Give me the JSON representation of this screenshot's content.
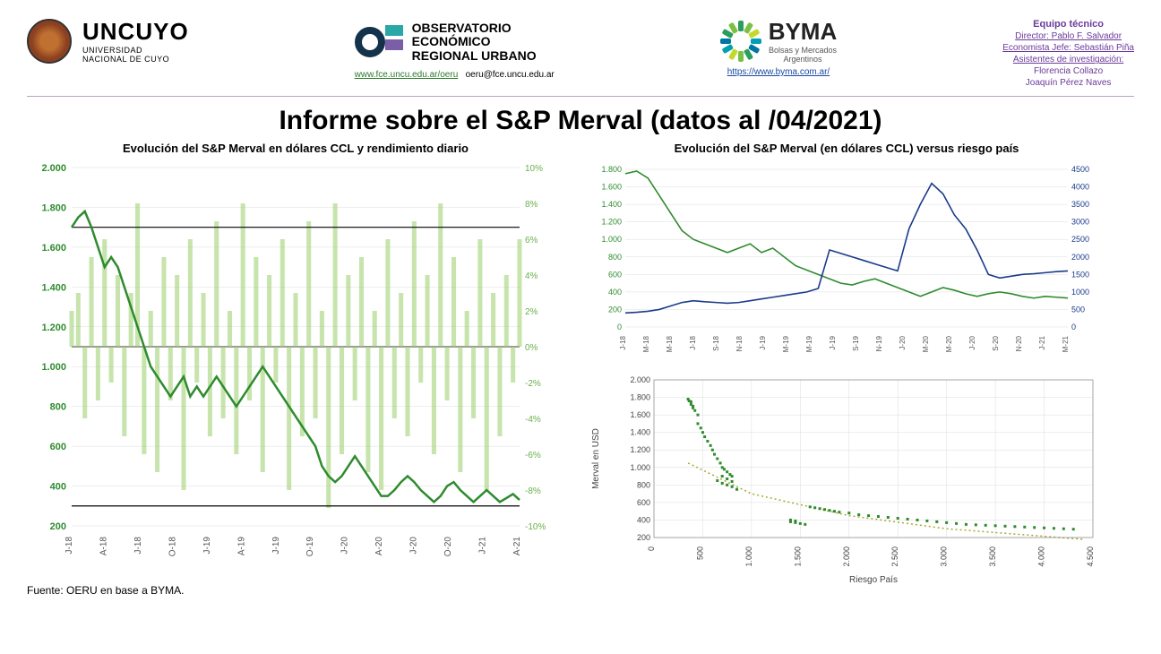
{
  "header": {
    "uncuyo": {
      "name": "UNCUYO",
      "sub1": "UNIVERSIDAD",
      "sub2": "NACIONAL DE CUYO"
    },
    "oeru": {
      "line1": "OBSERVATORIO",
      "line2": "ECONÓMICO",
      "line3": "REGIONAL URBANO",
      "url": "www.fce.uncu.edu.ar/oeru",
      "email": "oeru@fce.uncu.edu.ar"
    },
    "byma": {
      "name": "BYMA",
      "sub1": "Bolsas y Mercados",
      "sub2": "Argentinos",
      "url": "https://www.byma.com.ar/"
    },
    "team": {
      "title": "Equipo técnico",
      "lines": [
        "Director: Pablo F. Salvador",
        "Economista Jefe: Sebastián Piña",
        "Asistentes de investigación:",
        "Florencia Collazo",
        "Joaquín Pérez Naves"
      ]
    }
  },
  "main_title": "Informe sobre el S&P Merval (datos al /04/2021)",
  "source": "Fuente: OERU en base a BYMA.",
  "chart1": {
    "title": "Evolución del S&P Merval en dólares CCL y rendimiento diario",
    "type": "line+bars_dual_axis",
    "x_labels": [
      "J-18",
      "A-18",
      "J-18",
      "O-18",
      "J-19",
      "A-19",
      "J-19",
      "O-19",
      "J-20",
      "A-20",
      "J-20",
      "O-20",
      "J-21",
      "A-21"
    ],
    "y1_ticks": [
      200,
      400,
      600,
      800,
      1000,
      1200,
      1400,
      1600,
      1800,
      2000
    ],
    "y1_lim": [
      200,
      2000
    ],
    "y2_ticks": [
      -10,
      -8,
      -6,
      -4,
      -2,
      0,
      2,
      4,
      6,
      8,
      10
    ],
    "y2_lim": [
      -10,
      10
    ],
    "line_color": "#2e8b2e",
    "line_width": 2.5,
    "bar_color": "#9acd6a",
    "bar_opacity": 0.55,
    "ref_line_color": "#000000",
    "ref_lines": [
      300,
      1700
    ],
    "zero_line_color": "#999999",
    "grid_color": "#dcdcdc",
    "line_series": [
      1700,
      1750,
      1780,
      1700,
      1600,
      1500,
      1550,
      1500,
      1400,
      1300,
      1200,
      1100,
      1000,
      950,
      900,
      850,
      900,
      950,
      850,
      900,
      850,
      900,
      950,
      900,
      850,
      800,
      850,
      900,
      950,
      1000,
      950,
      900,
      850,
      800,
      750,
      700,
      650,
      600,
      500,
      450,
      420,
      450,
      500,
      550,
      500,
      450,
      400,
      350,
      350,
      380,
      420,
      450,
      420,
      380,
      350,
      320,
      350,
      400,
      420,
      380,
      350,
      320,
      350,
      380,
      350,
      320,
      340,
      360,
      330
    ],
    "bar_series": [
      2,
      3,
      -4,
      5,
      -3,
      6,
      -2,
      4,
      -5,
      3,
      8,
      -6,
      2,
      -7,
      5,
      -3,
      4,
      -8,
      6,
      -2,
      3,
      -5,
      7,
      -4,
      2,
      -6,
      8,
      -3,
      5,
      -7,
      4,
      -2,
      6,
      -8,
      3,
      -5,
      7,
      -4,
      2,
      -9,
      8,
      -6,
      4,
      -3,
      5,
      -7,
      2,
      -8,
      6,
      -4,
      3,
      -5,
      7,
      -2,
      4,
      -6,
      8,
      -3,
      5,
      -7,
      2,
      -4,
      6,
      -8,
      3,
      -5,
      4,
      -2,
      6
    ],
    "background_color": "#ffffff"
  },
  "chart2": {
    "title": "Evolución del S&P Merval (en dólares CCL) versus riesgo país",
    "type": "dual_line_dual_axis",
    "x_labels": [
      "J-18",
      "M-18",
      "M-18",
      "J-18",
      "S-18",
      "N-18",
      "J-19",
      "M-19",
      "M-19",
      "J-19",
      "S-19",
      "N-19",
      "J-20",
      "M-20",
      "M-20",
      "J-20",
      "S-20",
      "N-20",
      "J-21",
      "M-21"
    ],
    "y1_ticks": [
      0,
      200,
      400,
      600,
      800,
      1000,
      1200,
      1400,
      1600,
      1800
    ],
    "y1_lim": [
      0,
      1800
    ],
    "y2_ticks": [
      0,
      500,
      1000,
      1500,
      2000,
      2500,
      3000,
      3500,
      4000,
      4500
    ],
    "y2_lim": [
      0,
      4500
    ],
    "series1_color": "#2e8b2e",
    "series2_color": "#1a3a8a",
    "line_width": 1.6,
    "grid_color": "#dcdcdc",
    "series1": [
      1750,
      1780,
      1700,
      1500,
      1300,
      1100,
      1000,
      950,
      900,
      850,
      900,
      950,
      850,
      900,
      800,
      700,
      650,
      600,
      550,
      500,
      480,
      520,
      550,
      500,
      450,
      400,
      350,
      400,
      450,
      420,
      380,
      350,
      380,
      400,
      380,
      350,
      330,
      350,
      340,
      330
    ],
    "series2": [
      400,
      420,
      450,
      500,
      600,
      700,
      750,
      720,
      700,
      680,
      700,
      750,
      800,
      850,
      900,
      950,
      1000,
      1100,
      2200,
      2100,
      2000,
      1900,
      1800,
      1700,
      1600,
      2800,
      3500,
      4100,
      3800,
      3200,
      2800,
      2200,
      1500,
      1400,
      1450,
      1500,
      1520,
      1550,
      1580,
      1600
    ],
    "background_color": "#ffffff"
  },
  "chart3": {
    "type": "scatter",
    "x_label": "Riesgo País",
    "y_label": "Merval en USD",
    "x_ticks": [
      0,
      500,
      1000,
      1500,
      2000,
      2500,
      3000,
      3500,
      4000,
      4500
    ],
    "x_lim": [
      0,
      4500
    ],
    "y_ticks": [
      200,
      400,
      600,
      800,
      1000,
      1200,
      1400,
      1600,
      1800,
      2000
    ],
    "y_lim": [
      200,
      2000
    ],
    "marker_color": "#2e8b2e",
    "marker_size": 3,
    "trend_color": "#a8a830",
    "trend_style": "dotted",
    "points": [
      [
        350,
        1780
      ],
      [
        360,
        1760
      ],
      [
        380,
        1720
      ],
      [
        400,
        1700
      ],
      [
        420,
        1650
      ],
      [
        450,
        1600
      ],
      [
        380,
        1750
      ],
      [
        400,
        1680
      ],
      [
        450,
        1500
      ],
      [
        480,
        1450
      ],
      [
        500,
        1400
      ],
      [
        520,
        1350
      ],
      [
        550,
        1300
      ],
      [
        580,
        1250
      ],
      [
        600,
        1200
      ],
      [
        620,
        1150
      ],
      [
        650,
        1100
      ],
      [
        680,
        1050
      ],
      [
        700,
        1000
      ],
      [
        720,
        980
      ],
      [
        750,
        950
      ],
      [
        780,
        920
      ],
      [
        800,
        900
      ],
      [
        650,
        850
      ],
      [
        700,
        820
      ],
      [
        750,
        800
      ],
      [
        800,
        780
      ],
      [
        850,
        750
      ],
      [
        700,
        900
      ],
      [
        750,
        870
      ],
      [
        800,
        840
      ],
      [
        1400,
        380
      ],
      [
        1450,
        370
      ],
      [
        1500,
        360
      ],
      [
        1550,
        350
      ],
      [
        1400,
        400
      ],
      [
        1450,
        390
      ],
      [
        1600,
        550
      ],
      [
        1650,
        540
      ],
      [
        1700,
        530
      ],
      [
        1750,
        520
      ],
      [
        1800,
        510
      ],
      [
        1850,
        500
      ],
      [
        1900,
        490
      ],
      [
        2000,
        480
      ],
      [
        2100,
        460
      ],
      [
        2200,
        450
      ],
      [
        2300,
        440
      ],
      [
        2400,
        430
      ],
      [
        2500,
        420
      ],
      [
        2600,
        410
      ],
      [
        2700,
        400
      ],
      [
        2800,
        390
      ],
      [
        2900,
        380
      ],
      [
        3000,
        370
      ],
      [
        3100,
        360
      ],
      [
        3200,
        350
      ],
      [
        3300,
        345
      ],
      [
        3400,
        340
      ],
      [
        3500,
        335
      ],
      [
        3600,
        330
      ],
      [
        3700,
        325
      ],
      [
        3800,
        320
      ],
      [
        3900,
        315
      ],
      [
        4000,
        310
      ],
      [
        4100,
        305
      ],
      [
        4200,
        300
      ],
      [
        4300,
        295
      ]
    ],
    "trend_points": [
      [
        350,
        1050
      ],
      [
        1000,
        700
      ],
      [
        2000,
        450
      ],
      [
        3000,
        300
      ],
      [
        4400,
        180
      ]
    ],
    "background_color": "#ffffff",
    "grid_color": "#dcdcdc"
  },
  "byma_ring_colors": [
    "#2a9e5c",
    "#7ac143",
    "#c4d92e",
    "#00a0b0",
    "#0076a3",
    "#2a9e5c",
    "#7ac143",
    "#c4d92e",
    "#00a0b0",
    "#0076a3",
    "#2a9e5c",
    "#7ac143"
  ]
}
